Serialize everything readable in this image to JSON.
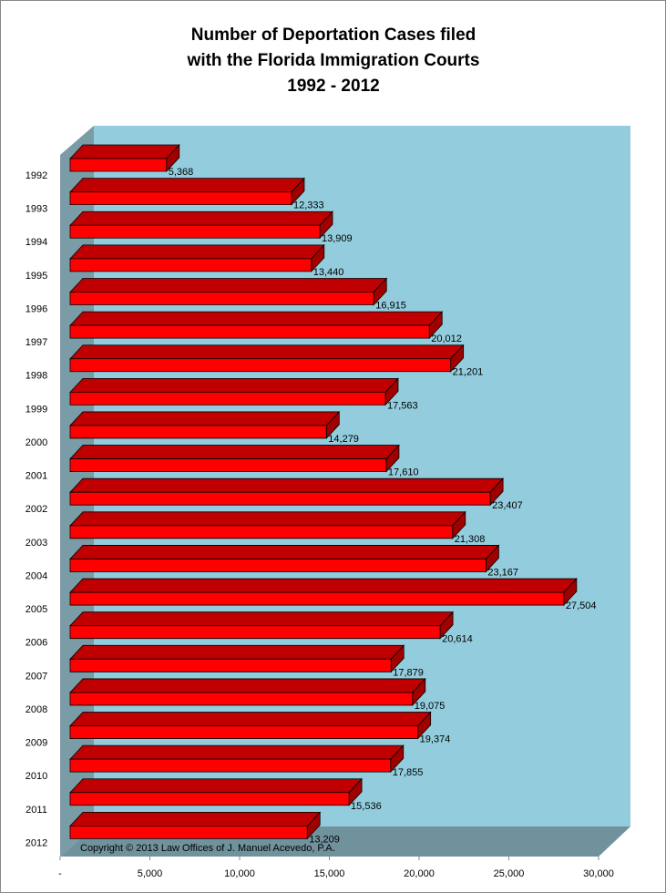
{
  "chart_data": {
    "type": "bar3d-horizontal",
    "title": [
      "Number of Deportation Cases filed",
      "with the Florida Immigration Courts",
      "1992 - 2012"
    ],
    "annotation": "Copyright © 2013 Law Offices of J. Manuel Acevedo, P.A.",
    "categories": [
      "1992",
      "1993",
      "1994",
      "1995",
      "1996",
      "1997",
      "1998",
      "1999",
      "2000",
      "2001",
      "2002",
      "2003",
      "2004",
      "2005",
      "2006",
      "2007",
      "2008",
      "2009",
      "2010",
      "2011",
      "2012"
    ],
    "values": [
      5368,
      12333,
      13909,
      13440,
      16915,
      20012,
      21201,
      17563,
      14279,
      17610,
      23407,
      21308,
      23167,
      27504,
      20614,
      17879,
      19075,
      19374,
      17855,
      15536,
      13209
    ],
    "value_labels": [
      "5,368",
      "12,333",
      "13,909",
      "13,440",
      "16,915",
      "20,012",
      "21,201",
      "17,563",
      "14,279",
      "17,610",
      "23,407",
      "21,308",
      "23,167",
      "27,504",
      "20,614",
      "17,879",
      "19,075",
      "19,374",
      "17,855",
      "15,536",
      "13,209"
    ],
    "color": "#ff0000",
    "xlim": [
      0,
      30000
    ],
    "xticks": [
      {
        "value": 0,
        "label": "-"
      },
      {
        "value": 5000,
        "label": "5,000"
      },
      {
        "value": 10000,
        "label": "10,000"
      },
      {
        "value": 15000,
        "label": "15,000"
      },
      {
        "value": 20000,
        "label": "20,000"
      },
      {
        "value": 25000,
        "label": "25,000"
      },
      {
        "value": 30000,
        "label": "30,000"
      }
    ]
  }
}
